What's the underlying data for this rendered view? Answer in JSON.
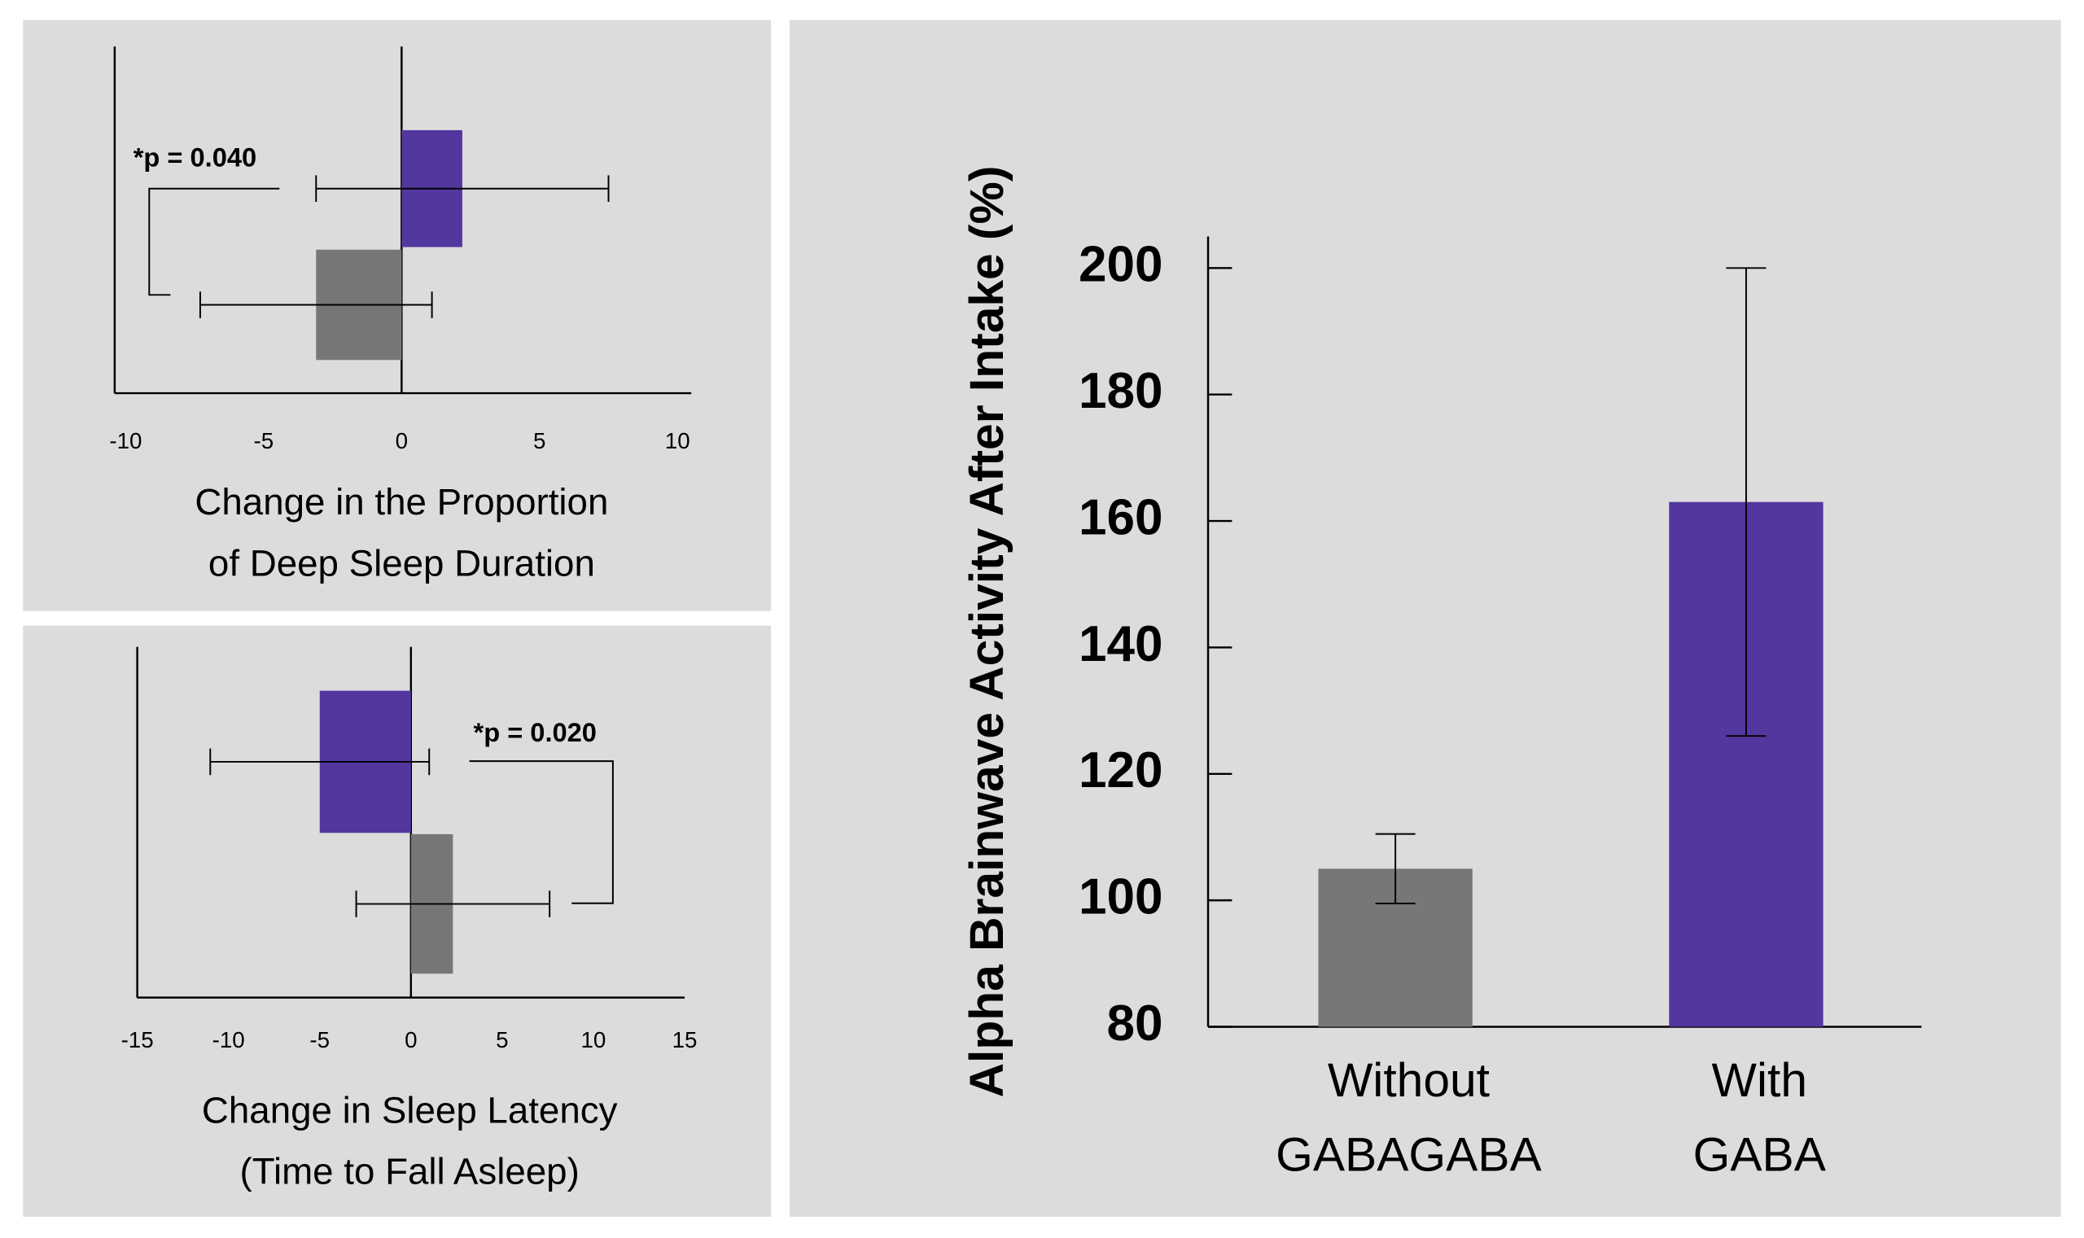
{
  "chart_data": [
    {
      "type": "hbar",
      "values": [
        2.2,
        -3.1
      ],
      "errors": [
        5.3,
        4.2
      ],
      "colors": [
        "#53379e",
        "#777777"
      ],
      "xlim": [
        -10.4,
        10.5
      ],
      "xticks": [
        -10,
        -5,
        0,
        5,
        10
      ],
      "xlabel": [
        "Change in the Proportion",
        "of Deep Sleep Duration"
      ],
      "annotation": "*p = 0.040"
    },
    {
      "type": "hbar",
      "values": [
        -5,
        2.3
      ],
      "errors": [
        6,
        5.3
      ],
      "colors": [
        "#53379e",
        "#777777"
      ],
      "xlim": [
        -15,
        15
      ],
      "xticks": [
        -15,
        -10,
        -5,
        0,
        5,
        10,
        15
      ],
      "xlabel": [
        "Change in Sleep Latency",
        "(Time to Fall Asleep)"
      ],
      "annotation": "*p = 0.020"
    },
    {
      "type": "bar",
      "categories": [
        [
          "Without",
          "GABAGABA"
        ],
        [
          "With",
          "GABA"
        ]
      ],
      "values": [
        105,
        163
      ],
      "errors": [
        5.5,
        37
      ],
      "colors": [
        "#777777",
        "#53379e"
      ],
      "ylim": [
        80,
        205
      ],
      "yticks": [
        80,
        100,
        120,
        140,
        160,
        180,
        200
      ],
      "ylabel": "Alpha Brainwave Activity After Intake (%)"
    }
  ]
}
